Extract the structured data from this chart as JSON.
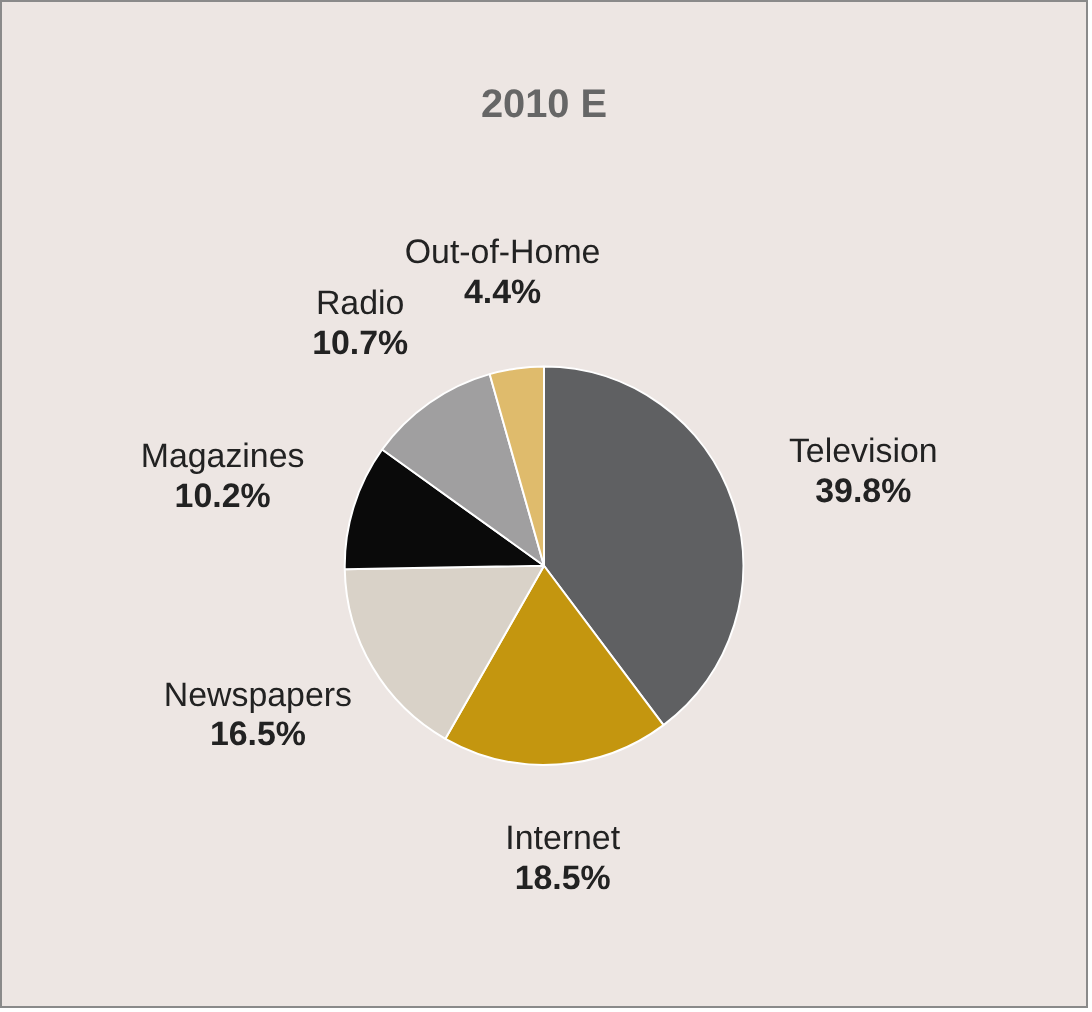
{
  "chart_data": {
    "type": "pie",
    "title": "2010 E",
    "categories": [
      "Television",
      "Internet",
      "Newspapers",
      "Magazines",
      "Radio",
      "Out-of-Home"
    ],
    "values": [
      39.8,
      18.5,
      16.5,
      10.2,
      10.7,
      4.4
    ],
    "colors": [
      "#5f6062",
      "#c4960f",
      "#d9d2c8",
      "#0a0a0a",
      "#a09fa0",
      "#dfbb6c"
    ],
    "value_labels": [
      "39.8%",
      "18.5%",
      "16.5%",
      "10.2%",
      "10.7%",
      "4.4%"
    ],
    "legend": false
  }
}
